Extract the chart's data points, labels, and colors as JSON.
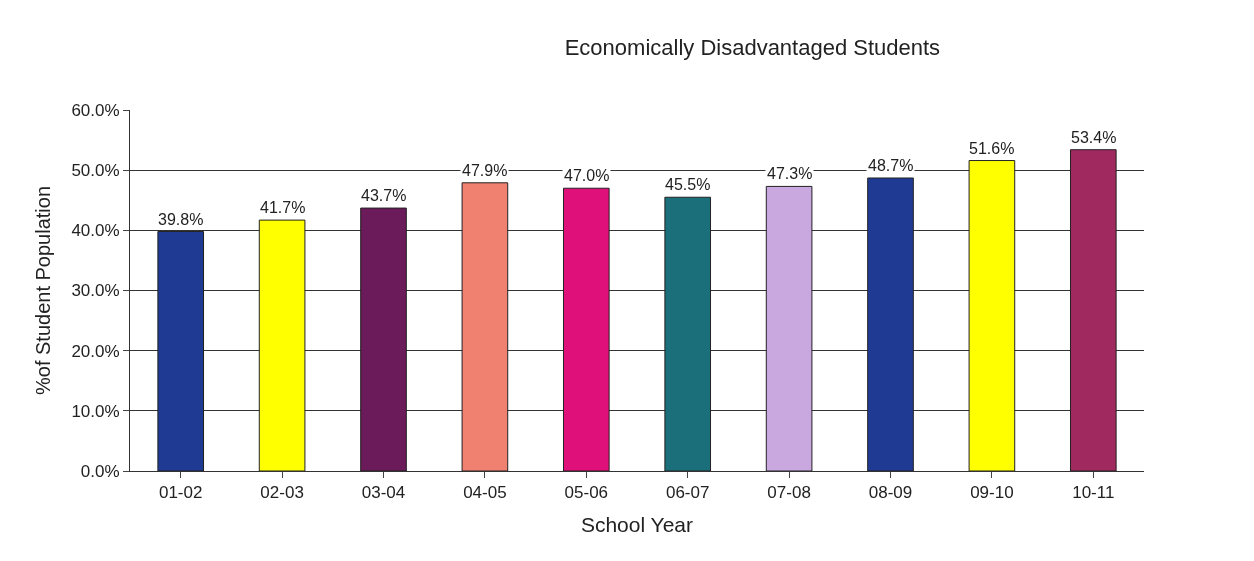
{
  "chart_data": {
    "type": "bar",
    "title": "Economically Disadvantaged Students",
    "xlabel": "School Year",
    "ylabel": "%of Student Population",
    "categories": [
      "01-02",
      "02-03",
      "03-04",
      "04-05",
      "05-06",
      "06-07",
      "07-08",
      "08-09",
      "09-10",
      "10-11"
    ],
    "values": [
      39.8,
      41.7,
      43.7,
      47.9,
      47.0,
      45.5,
      47.3,
      48.7,
      51.6,
      53.4
    ],
    "value_labels": [
      "39.8%",
      "41.7%",
      "43.7%",
      "47.9%",
      "47.0%",
      "45.5%",
      "47.3%",
      "48.7%",
      "51.6%",
      "53.4%"
    ],
    "colors": [
      "#1f3a93",
      "#ffff00",
      "#6b1a5a",
      "#f08070",
      "#e0107a",
      "#1a6f7a",
      "#c9a8e0",
      "#1f3a93",
      "#ffff00",
      "#a02a60"
    ],
    "ylim": [
      0,
      60
    ],
    "yticks": [
      {
        "value": 0,
        "label": "0.0%"
      },
      {
        "value": 10,
        "label": "10.0%"
      },
      {
        "value": 20,
        "label": "20.0%"
      },
      {
        "value": 30,
        "label": "30.0%"
      },
      {
        "value": 40,
        "label": "40.0%"
      },
      {
        "value": 50,
        "label": "50.0%"
      },
      {
        "value": 60,
        "label": "60.0%"
      }
    ],
    "grid": "y"
  }
}
